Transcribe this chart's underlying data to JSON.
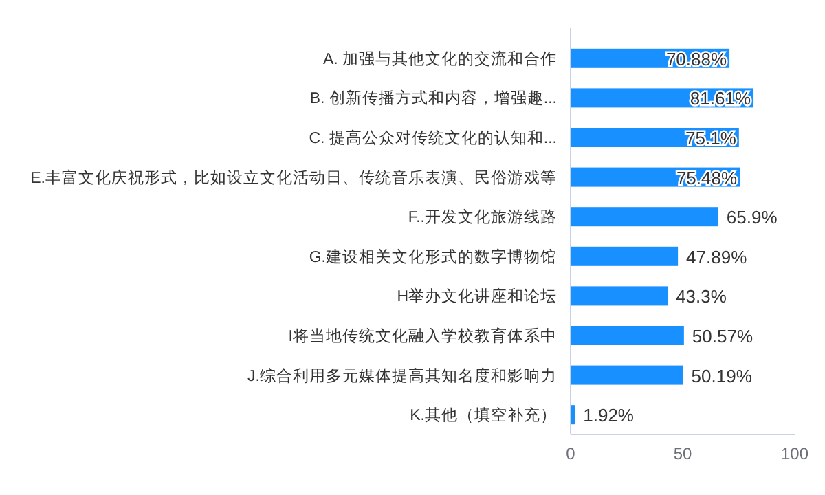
{
  "chart_data": {
    "type": "bar",
    "orientation": "horizontal",
    "categories": [
      "A. 加强与其他文化的交流和合作",
      "B. 创新传播方式和内容，增强趣...",
      "C. 提高公众对传统文化的认知和...",
      "E.丰富文化庆祝形式，比如设立文化活动日、传统音乐表演、民俗游戏等",
      "F..开发文化旅游线路",
      "G.建设相关文化形式的数字博物馆",
      "H举办文化讲座和论坛",
      "I将当地传统文化融入学校教育体系中",
      "J.综合利用多元媒体提高其知名度和影响力",
      "K.其他（填空补充）"
    ],
    "values": [
      70.88,
      81.61,
      75.1,
      75.48,
      65.9,
      47.89,
      43.3,
      50.57,
      50.19,
      1.92
    ],
    "value_labels": [
      "70.88%",
      "81.61%",
      "75.1%",
      "75.48%",
      "65.9%",
      "47.89%",
      "43.3%",
      "50.57%",
      "50.19%",
      "1.92%"
    ],
    "color": "#1890ff",
    "xlim": [
      0,
      100
    ],
    "xticks": [
      0,
      50,
      100
    ]
  }
}
